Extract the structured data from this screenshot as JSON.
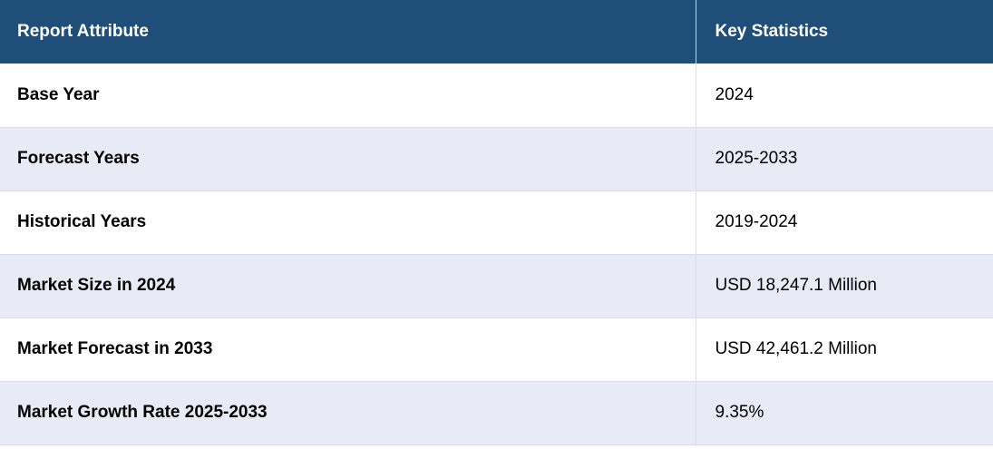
{
  "header": {
    "attribute_label": "Report Attribute",
    "statistics_label": "Key Statistics"
  },
  "colors": {
    "header_background": "#1f4e79",
    "header_text": "#ffffff",
    "row_alt_background": "#e8eaf5",
    "row_background": "#ffffff"
  },
  "rows": [
    {
      "attribute": "Base Year",
      "value": "2024"
    },
    {
      "attribute": "Forecast Years",
      "value": "2025-2033"
    },
    {
      "attribute": "Historical Years",
      "value": "2019-2024"
    },
    {
      "attribute": "Market Size in 2024",
      "value": "USD 18,247.1 Million"
    },
    {
      "attribute": "Market Forecast in 2033",
      "value": "USD 42,461.2 Million"
    },
    {
      "attribute": "Market Growth Rate 2025-2033",
      "value": "9.35%"
    }
  ]
}
